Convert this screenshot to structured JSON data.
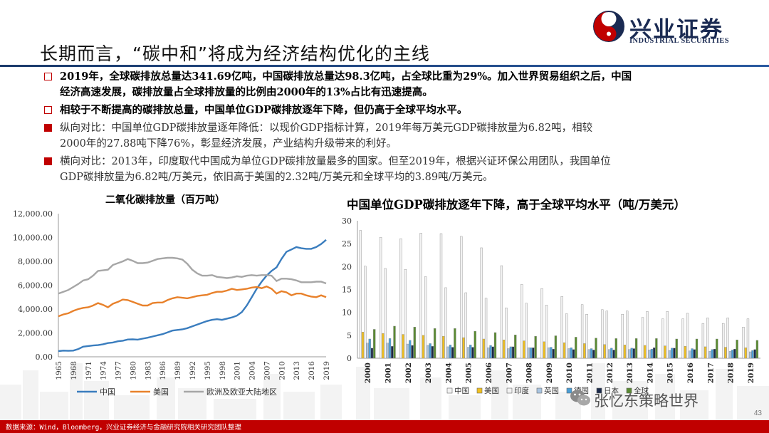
{
  "brand": {
    "cn": "兴业证券",
    "en": "INDUSTRIAL SECURITIES",
    "colors": {
      "navy": "#1a2a52",
      "red": "#c00000"
    }
  },
  "title": "长期而言，“碳中和”将成为经济结构优化的主线",
  "bullets": [
    {
      "style": "box",
      "bold": true,
      "lines": [
        "2019年，全球碳排放总量达341.69亿吨，中国碳排放总量达98.3亿吨，占全球比重为29%。加入世界贸易组织之后，中国",
        "经济高速发展，碳排放量占全球排放量的比例由2000年的13%占比有迅速提高。"
      ]
    },
    {
      "style": "box",
      "bold": true,
      "lines": [
        "相较于不断提高的碳排放总量，中国单位GDP碳排放逐年下降，但仍高于全球平均水平。"
      ]
    },
    {
      "style": "square",
      "bold": false,
      "lines": [
        "纵向对比：中国单位GDP碳排放量逐年降低：以现价GDP指标计算，2019年每万美元GDP碳排放量为6.82吨，相较",
        "2000年的27.88吨下降76%，彰显经济发展，产业结构升级带来的利好。"
      ]
    },
    {
      "style": "square",
      "bold": false,
      "lines": [
        "横向对比：2013年，印度取代中国成为单位GDP碳排放量最多的国家。但至2019年，根据兴证环保公用团队，我国单位",
        "GDP碳排放量为6.82吨/万美元，依旧高于美国的2.32吨/万美元和全球平均的3.89吨/万美元。"
      ]
    }
  ],
  "chart_data": [
    {
      "type": "line",
      "title": "二氧化碳排放量（百万吨）",
      "x": [
        1965,
        1966,
        1967,
        1968,
        1969,
        1970,
        1971,
        1972,
        1973,
        1974,
        1975,
        1976,
        1977,
        1978,
        1979,
        1980,
        1981,
        1982,
        1983,
        1984,
        1985,
        1986,
        1987,
        1988,
        1989,
        1990,
        1991,
        1992,
        1993,
        1994,
        1995,
        1996,
        1997,
        1998,
        1999,
        2000,
        2001,
        2002,
        2003,
        2004,
        2005,
        2006,
        2007,
        2008,
        2009,
        2010,
        2011,
        2012,
        2013,
        2014,
        2015,
        2016,
        2017,
        2018,
        2019
      ],
      "x_ticks": [
        "1965",
        "1968",
        "1971",
        "1974",
        "1977",
        "1980",
        "1983",
        "1986",
        "1989",
        "1992",
        "1995",
        "1998",
        "2001",
        "2004",
        "2007",
        "2010",
        "2013",
        "2016",
        "2019"
      ],
      "ylim": [
        0,
        12000
      ],
      "y_ticks": [
        "0.00",
        "2,000.00",
        "4,000.00",
        "6,000.00",
        "8,000.00",
        "10,000.00",
        "12,000.00"
      ],
      "legend_position": "bottom",
      "series": [
        {
          "name": "中国",
          "color": "#3a7dbe",
          "values": [
            480,
            520,
            500,
            520,
            650,
            850,
            900,
            950,
            980,
            1050,
            1150,
            1200,
            1300,
            1350,
            1450,
            1460,
            1440,
            1520,
            1600,
            1700,
            1800,
            1900,
            2050,
            2200,
            2250,
            2300,
            2400,
            2550,
            2700,
            2850,
            3000,
            3100,
            3150,
            3100,
            3200,
            3300,
            3450,
            3750,
            4300,
            5000,
            5700,
            6300,
            6800,
            7200,
            7500,
            8200,
            8800,
            9000,
            9200,
            9100,
            9050,
            9050,
            9200,
            9450,
            9800
          ]
        },
        {
          "name": "美国",
          "color": "#e8812b",
          "values": [
            3400,
            3550,
            3650,
            3850,
            4000,
            4100,
            4150,
            4300,
            4500,
            4350,
            4150,
            4450,
            4600,
            4800,
            4750,
            4600,
            4450,
            4300,
            4300,
            4500,
            4550,
            4550,
            4750,
            4900,
            5000,
            4950,
            4900,
            5000,
            5100,
            5150,
            5200,
            5350,
            5450,
            5450,
            5550,
            5700,
            5600,
            5650,
            5700,
            5800,
            5850,
            5750,
            5900,
            5700,
            5300,
            5500,
            5400,
            5150,
            5300,
            5300,
            5150,
            5050,
            5000,
            5150,
            5000
          ]
        },
        {
          "name": "欧洲及欧亚大陆地区",
          "color": "#a6a6a6",
          "values": [
            5300,
            5450,
            5600,
            5850,
            6100,
            6400,
            6500,
            6800,
            7200,
            7250,
            7300,
            7700,
            7850,
            8000,
            8200,
            8050,
            7850,
            7850,
            7900,
            8050,
            8200,
            8250,
            8300,
            8300,
            8250,
            8150,
            7800,
            7300,
            7000,
            6800,
            6800,
            6850,
            6700,
            6650,
            6600,
            6650,
            6750,
            6700,
            6800,
            6850,
            6800,
            6850,
            6850,
            6800,
            6350,
            6550,
            6550,
            6500,
            6400,
            6250,
            6250,
            6250,
            6300,
            6300,
            6150
          ]
        }
      ]
    },
    {
      "type": "bar",
      "title": "中国单位GDP碳排放逐年下降，高于全球平均水平（吨/万美元）",
      "categories": [
        "2000",
        "2001",
        "2002",
        "2003",
        "2004",
        "2005",
        "2006",
        "2007",
        "2008",
        "2009",
        "2010",
        "2011",
        "2012",
        "2013",
        "2014",
        "2015",
        "2016",
        "2017",
        "2018",
        "2019"
      ],
      "ylim": [
        0,
        30
      ],
      "y_ticks": [
        "0",
        "5",
        "10",
        "15",
        "20",
        "25",
        "30"
      ],
      "legend_position": "bottom",
      "series": [
        {
          "name": "中国",
          "color": "#f2f2f2",
          "values": [
            27.9,
            26.4,
            26.1,
            27.3,
            27.2,
            26.6,
            24.1,
            20.2,
            16.1,
            15.2,
            13.5,
            11.7,
            10.6,
            9.6,
            8.9,
            8.6,
            8.6,
            7.6,
            7.6,
            6.8
          ]
        },
        {
          "name": "美国",
          "color": "#f0c020",
          "values": [
            5.7,
            5.4,
            5.2,
            5.0,
            4.8,
            4.5,
            4.2,
            4.0,
            3.8,
            3.6,
            3.4,
            3.2,
            3.0,
            2.9,
            2.8,
            2.7,
            2.6,
            2.5,
            2.4,
            2.3
          ]
        },
        {
          "name": "印度",
          "color": "#f2f2f2",
          "values": [
            20.1,
            19.6,
            19.4,
            17.8,
            15.4,
            14.3,
            13.1,
            11.0,
            12.0,
            11.6,
            9.7,
            9.6,
            10.3,
            10.3,
            10.2,
            10.2,
            9.8,
            8.8,
            8.8,
            8.6
          ]
        },
        {
          "name": "英国",
          "color": "#a9c4e0",
          "values": [
            3.3,
            3.3,
            3.1,
            2.8,
            2.5,
            2.4,
            2.3,
            2.1,
            2.3,
            2.3,
            2.1,
            1.9,
            1.9,
            1.9,
            1.8,
            1.7,
            1.6,
            1.5,
            1.5,
            1.4
          ]
        },
        {
          "name": "德国",
          "color": "#4a9ed6",
          "values": [
            4.2,
            4.3,
            3.9,
            3.2,
            2.9,
            2.9,
            2.8,
            2.5,
            2.3,
            2.4,
            2.3,
            2.1,
            2.2,
            2.2,
            2.0,
            2.2,
            2.1,
            1.9,
            1.8,
            1.7
          ]
        },
        {
          "name": "日本",
          "color": "#1b2a4a",
          "values": [
            2.2,
            2.6,
            2.8,
            2.6,
            2.4,
            2.4,
            2.5,
            2.5,
            2.3,
            2.0,
            1.9,
            1.8,
            1.8,
            2.1,
            2.3,
            2.2,
            1.9,
            2.0,
            2.0,
            1.9
          ]
        },
        {
          "name": "全球",
          "color": "#5a8a32",
          "values": [
            6.3,
            7.0,
            6.8,
            6.5,
            6.5,
            5.9,
            5.6,
            5.1,
            4.8,
            4.9,
            4.6,
            4.4,
            4.3,
            4.3,
            4.3,
            4.2,
            4.2,
            4.2,
            4.0,
            3.9
          ]
        }
      ]
    }
  ],
  "footer": {
    "source": "数据来源：Wind，Bloomberg，兴业证券经济与金融研究院相关研究团队整理",
    "page": "43"
  },
  "watermark": "张忆东策略世界"
}
